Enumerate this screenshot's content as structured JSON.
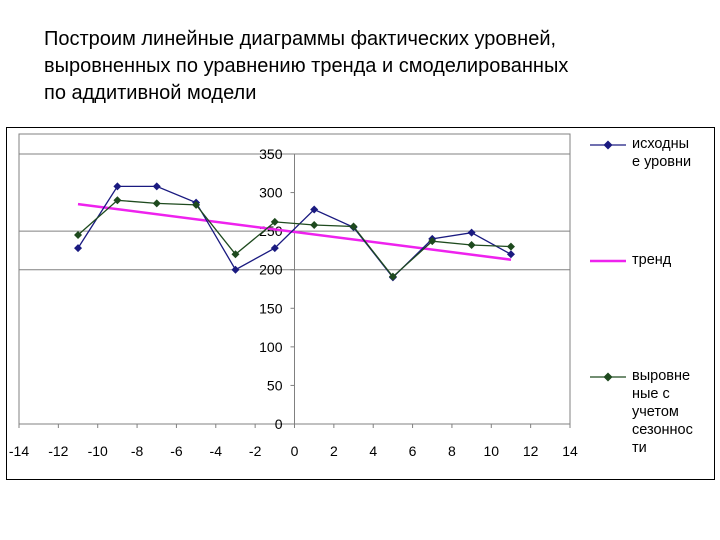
{
  "title_lines": [
    "Построим линейные диаграммы фактических уровней,",
    "выровненных по уравнению тренда и смоделированных",
    "по аддитивной модели"
  ],
  "chart_data": {
    "type": "line",
    "title": "",
    "xlabel": "",
    "ylabel": "",
    "xlim": [
      -14,
      14
    ],
    "ylim": [
      0,
      350
    ],
    "x_ticks": [
      "-14",
      "-12",
      "-10",
      "-8",
      "-6",
      "-4",
      "-2",
      "0",
      "2",
      "4",
      "6",
      "8",
      "10",
      "12",
      "14"
    ],
    "y_ticks": [
      "0",
      "50",
      "100",
      "150",
      "200",
      "250",
      "300",
      "350"
    ],
    "gridlines_y": [
      200,
      250,
      350
    ],
    "legend_position": "right",
    "series": [
      {
        "name": "исходны\nе уровни",
        "color": "#1a1a80",
        "marker": "diamond",
        "x": [
          -11,
          -9,
          -7,
          -5,
          -3,
          -1,
          1,
          3,
          5,
          7,
          9,
          11
        ],
        "y": [
          228,
          308,
          308,
          287,
          200,
          228,
          278,
          255,
          190,
          240,
          248,
          220
        ]
      },
      {
        "name": "тренд",
        "color": "#ee22ee",
        "marker": "none",
        "x": [
          -11,
          11
        ],
        "y": [
          285,
          213
        ]
      },
      {
        "name": "выровне\nные с\nучетом\nсезоннос\nти",
        "color": "#1e4a1e",
        "marker": "diamond",
        "x": [
          -11,
          -9,
          -7,
          -5,
          -3,
          -1,
          1,
          3,
          5,
          7,
          9,
          11
        ],
        "y": [
          245,
          290,
          286,
          284,
          220,
          262,
          258,
          256,
          191,
          237,
          232,
          230
        ]
      }
    ]
  }
}
